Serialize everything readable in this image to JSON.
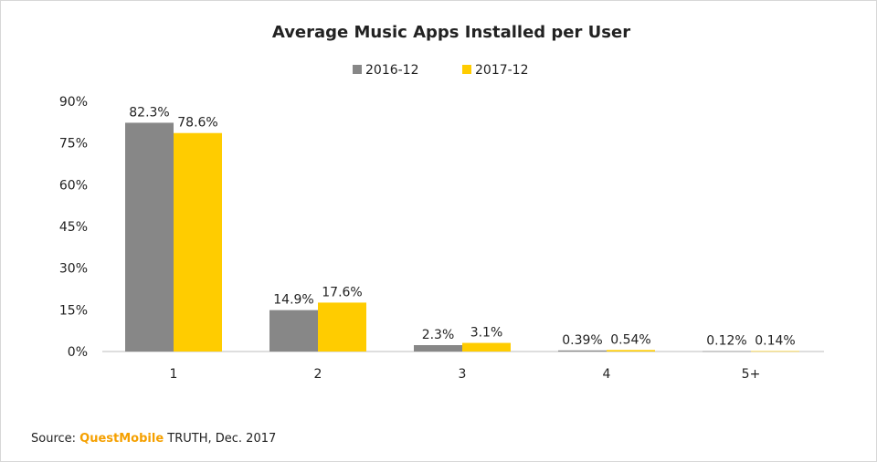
{
  "chart_data": {
    "type": "bar",
    "title": "Average Music Apps Installed per User",
    "categories": [
      "1",
      "2",
      "3",
      "4",
      "5+"
    ],
    "series": [
      {
        "name": "2016-12",
        "values": [
          82.3,
          14.9,
          2.3,
          0.39,
          0.12
        ],
        "labels": [
          "82.3%",
          "14.9%",
          "2.3%",
          "0.39%",
          "0.12%"
        ],
        "color": "#878787"
      },
      {
        "name": "2017-12",
        "values": [
          78.6,
          17.6,
          3.1,
          0.54,
          0.14
        ],
        "labels": [
          "78.6%",
          "17.6%",
          "3.1%",
          "0.54%",
          "0.14%"
        ],
        "color": "#ffcc00"
      }
    ],
    "yticks": [
      "0%",
      "15%",
      "30%",
      "45%",
      "60%",
      "75%",
      "90%"
    ],
    "ylim": [
      0,
      90
    ],
    "legend": "top-center",
    "grid": false
  },
  "source": {
    "prefix": "Source: ",
    "brand": "QuestMobile",
    "suffix": " TRUTH, Dec. 2017",
    "brand_color": "#f5a000"
  }
}
